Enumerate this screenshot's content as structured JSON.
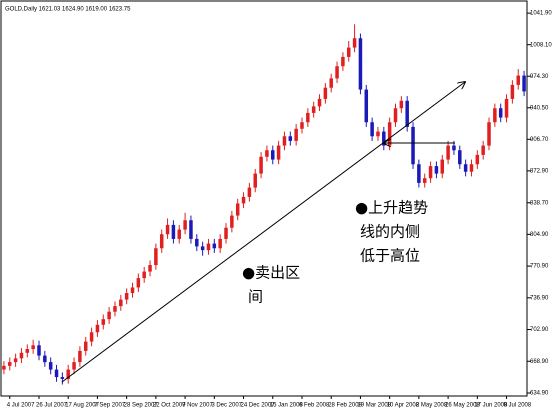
{
  "chart_data": {
    "type": "candlestick",
    "title": "GOLD,Daily  1621.03 1624.90 1619.00 1623.75",
    "annotations": [
      [
        "●上升趋势",
        "线的内侧",
        "低于高位"
      ],
      [
        "●卖出区",
        "间"
      ]
    ],
    "categories": [
      null,
      "4 Jul 2007",
      null,
      null,
      null,
      null,
      "26 Jul 2007",
      null,
      null,
      null,
      null,
      "17 Aug 2007",
      null,
      null,
      null,
      null,
      "7 Sep 2007",
      null,
      null,
      null,
      null,
      "28 Sep 2007",
      null,
      null,
      null,
      null,
      "22 Oct 2007",
      null,
      null,
      null,
      null,
      "9 Nov 2007",
      null,
      null,
      null,
      null,
      "3 Dec 2007",
      null,
      null,
      null,
      null,
      "24 Dec 2007",
      null,
      null,
      null,
      null,
      "15 Jan 2008",
      null,
      null,
      null,
      null,
      "6 Feb 2008",
      null,
      null,
      null,
      null,
      "28 Feb 2008",
      null,
      null,
      null,
      null,
      "19 Mar 2008",
      null,
      null,
      null,
      null,
      "10 Apr 2008",
      null,
      null,
      null,
      null,
      "2 May 2008",
      null,
      null,
      null,
      null,
      "26 May 2008",
      null,
      null,
      null,
      null,
      "17 Jun 2008",
      null,
      null,
      null,
      null,
      "9 Jul 2008",
      null,
      null,
      null
    ],
    "open": [
      660,
      664,
      668,
      672,
      678,
      682,
      686,
      675,
      668,
      660,
      652,
      650,
      660,
      668,
      680,
      690,
      700,
      708,
      714,
      722,
      728,
      735,
      742,
      748,
      758,
      765,
      772,
      790,
      805,
      815,
      800,
      810,
      820,
      800,
      792,
      788,
      795,
      790,
      800,
      812,
      825,
      838,
      845,
      855,
      870,
      888,
      895,
      885,
      900,
      910,
      905,
      918,
      925,
      935,
      942,
      950,
      962,
      972,
      985,
      995,
      1005,
      1015,
      960,
      925,
      910,
      915,
      900,
      925,
      940,
      948,
      920,
      880,
      860,
      865,
      878,
      870,
      885,
      900,
      895,
      880,
      872,
      880,
      890,
      900,
      925,
      940,
      930,
      950,
      965,
      975
    ],
    "high": [
      669,
      673,
      677,
      683,
      687,
      692,
      691,
      680,
      673,
      665,
      657,
      665,
      673,
      685,
      695,
      705,
      713,
      719,
      727,
      733,
      740,
      747,
      753,
      763,
      770,
      777,
      795,
      810,
      822,
      820,
      815,
      828,
      825,
      805,
      797,
      800,
      800,
      805,
      817,
      830,
      843,
      850,
      860,
      875,
      893,
      900,
      900,
      905,
      915,
      915,
      923,
      930,
      940,
      947,
      955,
      967,
      977,
      990,
      1000,
      1012,
      1030,
      1020,
      965,
      930,
      920,
      920,
      930,
      945,
      953,
      953,
      925,
      885,
      870,
      883,
      883,
      890,
      905,
      905,
      900,
      885,
      885,
      895,
      905,
      930,
      945,
      945,
      955,
      970,
      982,
      980
    ],
    "low": [
      655,
      659,
      663,
      667,
      673,
      677,
      670,
      663,
      655,
      647,
      644,
      645,
      655,
      663,
      675,
      685,
      695,
      703,
      709,
      717,
      723,
      730,
      737,
      743,
      753,
      760,
      767,
      785,
      800,
      795,
      795,
      805,
      795,
      787,
      782,
      783,
      785,
      785,
      795,
      807,
      820,
      833,
      840,
      850,
      865,
      883,
      880,
      880,
      895,
      900,
      900,
      913,
      920,
      930,
      937,
      945,
      957,
      967,
      980,
      990,
      1000,
      955,
      920,
      905,
      905,
      895,
      895,
      920,
      935,
      915,
      875,
      855,
      855,
      860,
      865,
      865,
      880,
      890,
      875,
      867,
      867,
      875,
      885,
      895,
      920,
      925,
      925,
      945,
      960,
      953
    ],
    "close": [
      664,
      668,
      672,
      678,
      682,
      686,
      675,
      668,
      660,
      652,
      650,
      660,
      668,
      680,
      690,
      700,
      708,
      714,
      722,
      728,
      735,
      742,
      748,
      758,
      765,
      772,
      790,
      805,
      815,
      800,
      810,
      820,
      800,
      792,
      788,
      795,
      790,
      800,
      812,
      825,
      838,
      845,
      855,
      870,
      888,
      895,
      885,
      900,
      910,
      905,
      918,
      925,
      935,
      942,
      950,
      962,
      972,
      985,
      995,
      1005,
      1015,
      960,
      925,
      910,
      915,
      900,
      925,
      940,
      948,
      920,
      880,
      860,
      865,
      878,
      870,
      885,
      900,
      895,
      880,
      872,
      880,
      890,
      900,
      925,
      940,
      930,
      950,
      965,
      975,
      958
    ],
    "up_color": "#e02020",
    "down_color": "#1a1ab8",
    "ylim": [
      631.7,
      1054.9
    ],
    "yticks": [
      {
        "value": 1041.9,
        "label": "1041.90"
      },
      {
        "value": 1008.1,
        "label": "1008.10"
      },
      {
        "value": 974.3,
        "label": "974.30"
      },
      {
        "value": 940.5,
        "label": "940.50"
      },
      {
        "value": 906.7,
        "label": "906.70"
      },
      {
        "value": 872.9,
        "label": "872.90"
      },
      {
        "value": 838.7,
        "label": "838.70"
      },
      {
        "value": 804.9,
        "label": "804.90"
      },
      {
        "value": 770.9,
        "label": "770.90"
      },
      {
        "value": 736.9,
        "label": "736.90"
      },
      {
        "value": 702.9,
        "label": "702.90"
      },
      {
        "value": 668.9,
        "label": "668.90"
      },
      {
        "value": 634.9,
        "label": "634.90"
      }
    ]
  }
}
